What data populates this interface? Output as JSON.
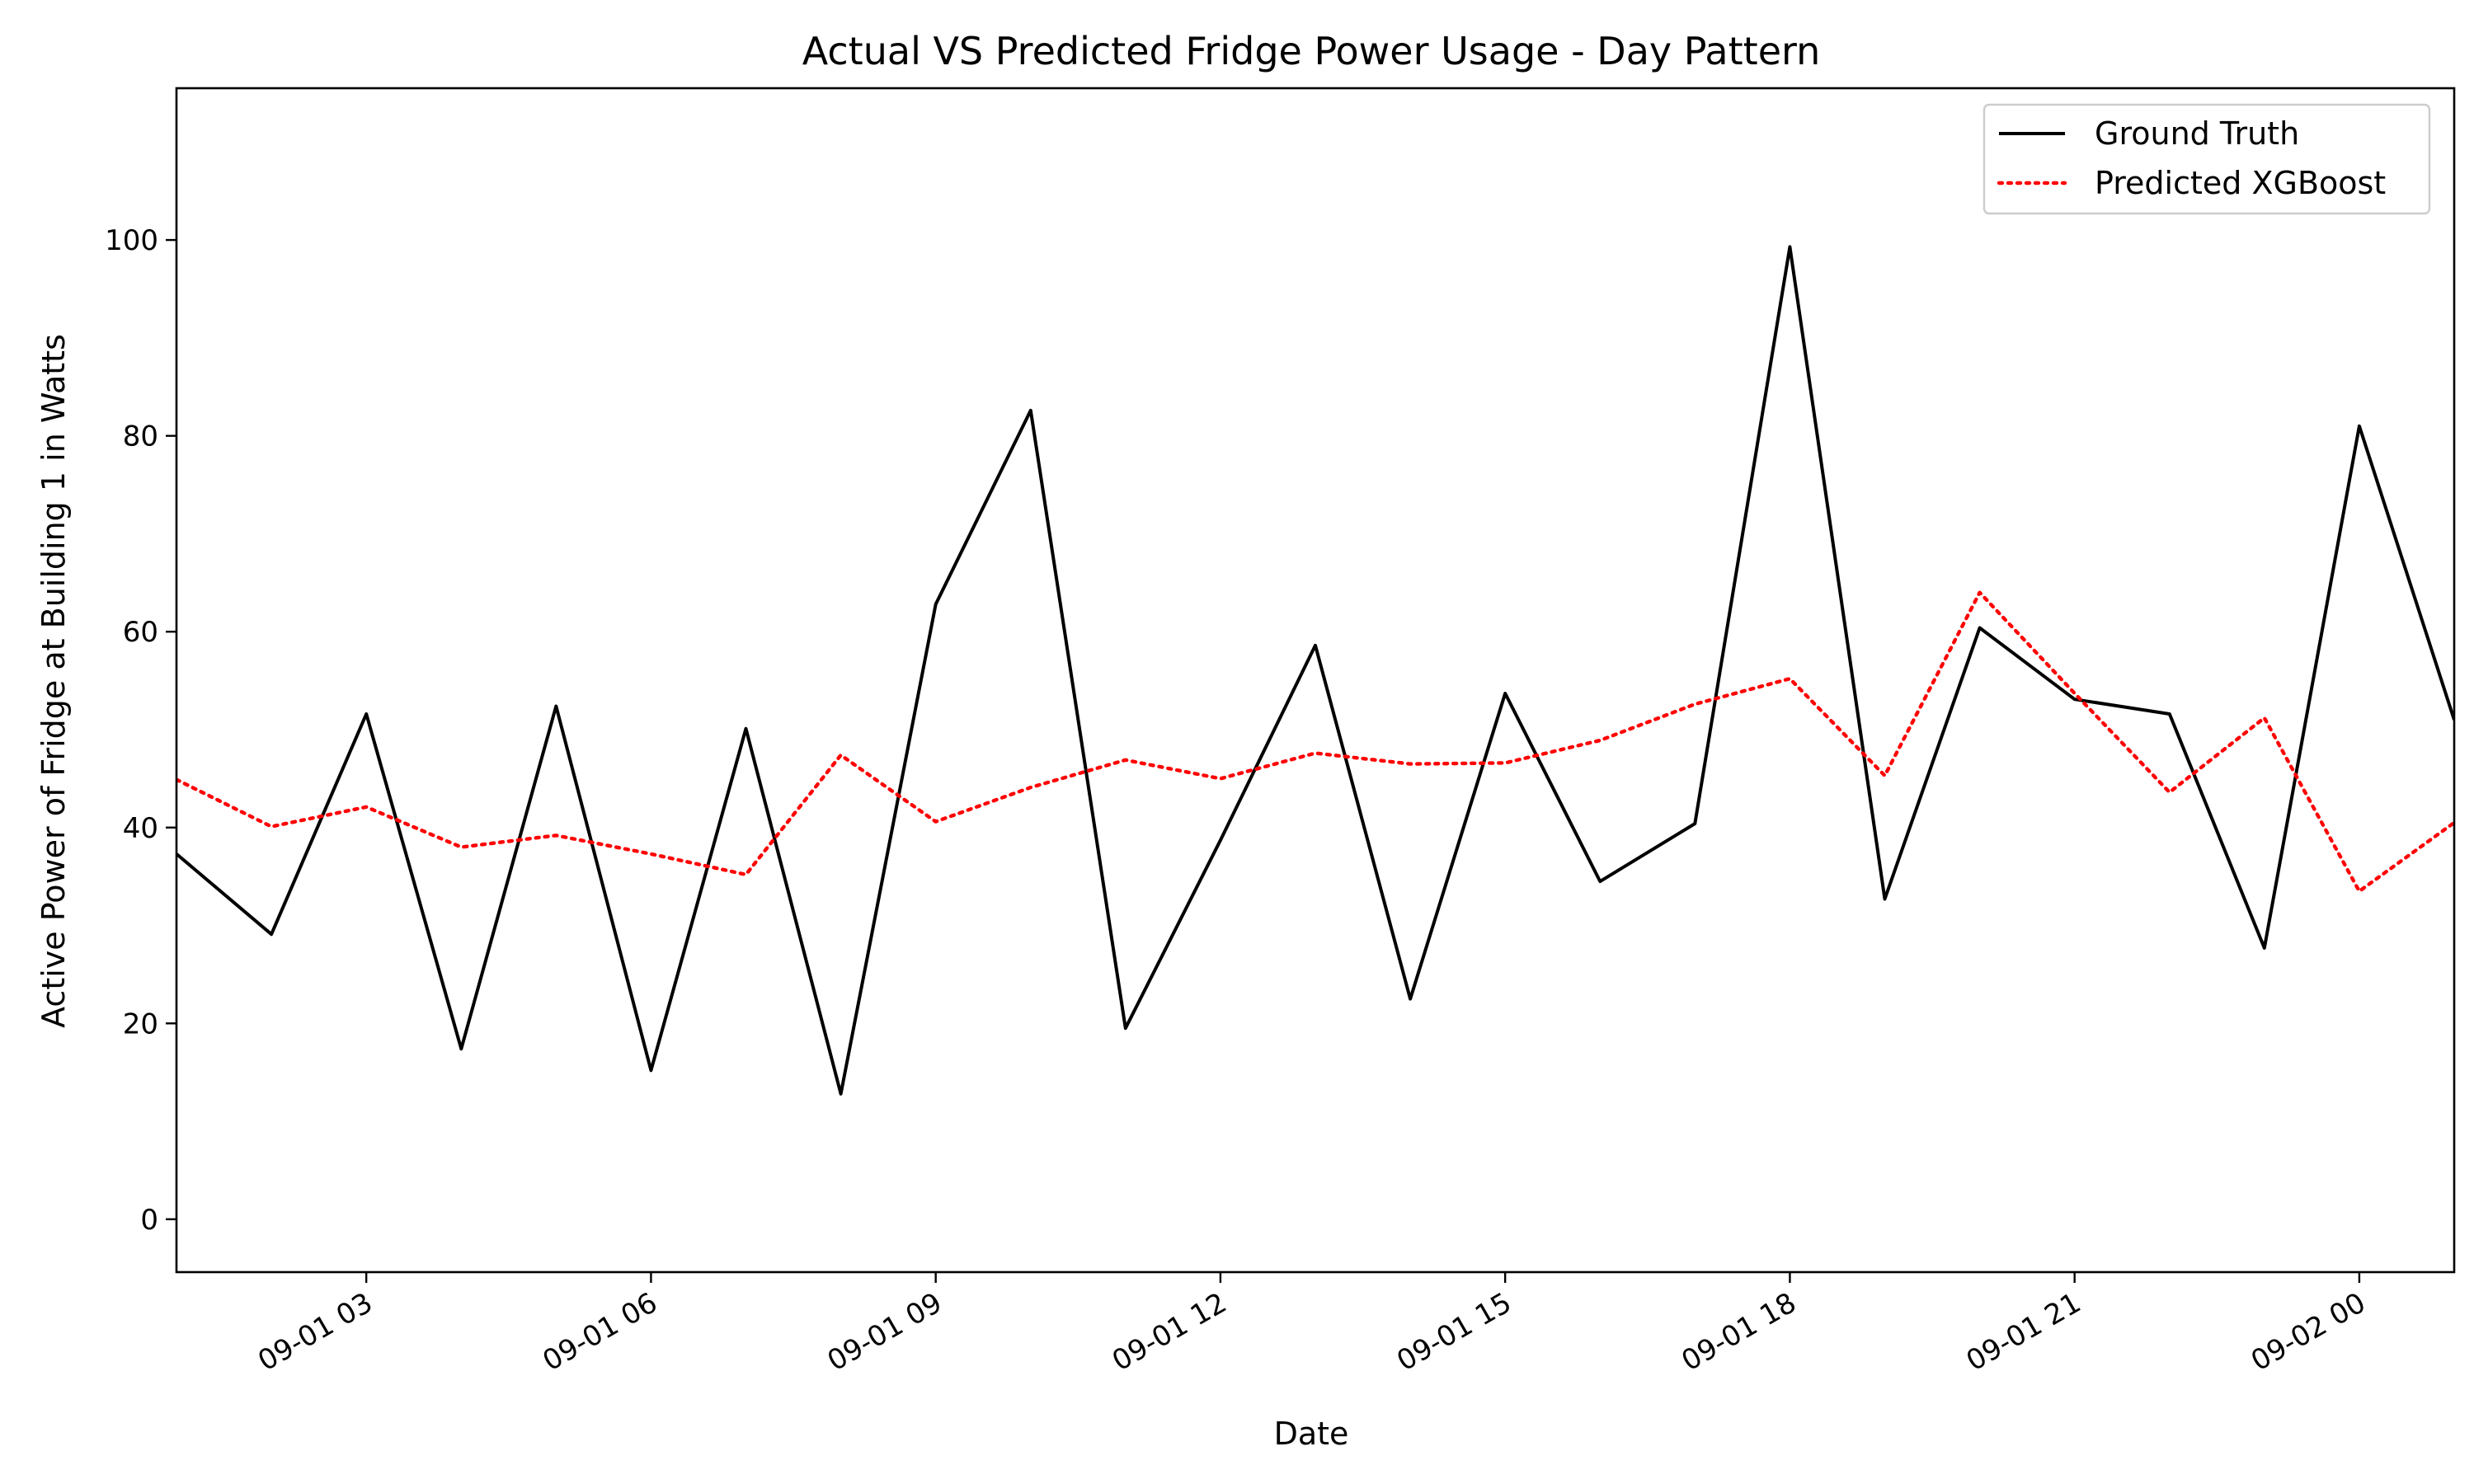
{
  "chart_data": {
    "type": "line",
    "title": "Actual VS Predicted Fridge Power Usage - Day Pattern",
    "xlabel": "Date",
    "ylabel": "Active Power of Fridge at Building 1 in Watts",
    "x": [
      "09-01 01:00",
      "09-01 02:00",
      "09-01 03:00",
      "09-01 04:00",
      "09-01 05:00",
      "09-01 06:00",
      "09-01 07:00",
      "09-01 08:00",
      "09-01 09:00",
      "09-01 10:00",
      "09-01 11:00",
      "09-01 12:00",
      "09-01 13:00",
      "09-01 14:00",
      "09-01 15:00",
      "09-01 16:00",
      "09-01 17:00",
      "09-01 18:00",
      "09-01 19:00",
      "09-01 20:00",
      "09-01 21:00",
      "09-01 22:00",
      "09-01 23:00",
      "09-02 00:00",
      "09-02 01:00"
    ],
    "series": [
      {
        "name": "Ground Truth",
        "color": "#000000",
        "style": "solid",
        "values": [
          37.3,
          29.1,
          51.6,
          17.4,
          52.4,
          15.2,
          50.1,
          12.8,
          62.8,
          82.6,
          19.5,
          38.7,
          58.6,
          22.5,
          53.7,
          34.5,
          40.4,
          99.3,
          32.7,
          60.4,
          53.1,
          51.6,
          27.7,
          81.0,
          51.0
        ]
      },
      {
        "name": "Predicted XGBoost",
        "color": "#ff0000",
        "style": "dotted",
        "values": [
          44.9,
          40.1,
          42.1,
          38.0,
          39.2,
          37.3,
          35.2,
          47.4,
          40.6,
          44.1,
          46.9,
          45.0,
          47.6,
          46.5,
          46.6,
          48.9,
          52.6,
          55.2,
          45.3,
          64.0,
          53.7,
          43.6,
          51.2,
          33.5,
          40.5
        ]
      }
    ],
    "x_ticks": [
      "09-01 03",
      "09-01 06",
      "09-01 09",
      "09-01 12",
      "09-01 15",
      "09-01 18",
      "09-01 21",
      "09-02 00"
    ],
    "y_ticks": [
      0,
      20,
      40,
      60,
      80,
      100
    ],
    "ylim": [
      -5.4,
      115.5
    ],
    "xlim": [
      "09-01 01:00",
      "09-02 01:00"
    ],
    "legend_position": "top-right",
    "grid": false
  }
}
